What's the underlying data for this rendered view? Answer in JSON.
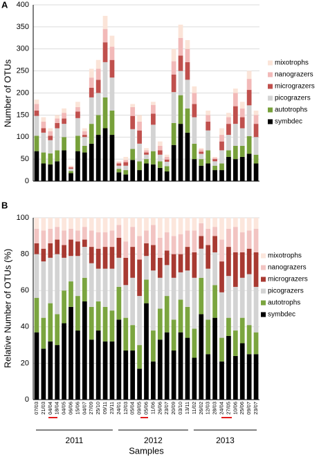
{
  "chart_data": [
    {
      "type": "stacked-bar",
      "label": "A",
      "ylabel": "Number of OTUs",
      "ylim": [
        0,
        400
      ],
      "yticks": [
        0,
        50,
        100,
        150,
        200,
        250,
        300,
        350,
        400
      ],
      "grid": true,
      "categories": [
        null,
        null,
        null,
        null,
        null,
        null,
        null,
        null,
        null,
        null,
        null,
        null,
        null,
        null,
        null,
        null,
        null,
        null,
        null,
        null,
        null,
        null,
        null,
        null,
        null,
        null,
        null,
        null,
        null,
        null,
        null,
        null,
        null
      ],
      "series": [
        {
          "name": "symbdec",
          "color": "#000000",
          "values": [
            68,
            40,
            38,
            45,
            70,
            18,
            68,
            65,
            85,
            105,
            120,
            105,
            20,
            15,
            48,
            25,
            40,
            38,
            30,
            22,
            82,
            130,
            110,
            50,
            35,
            40,
            25,
            25,
            55,
            50,
            55,
            62,
            40
          ]
        },
        {
          "name": "autotrophs",
          "color": "#77a03a",
          "values": [
            35,
            25,
            25,
            25,
            30,
            5,
            35,
            15,
            45,
            45,
            70,
            55,
            8,
            10,
            25,
            20,
            10,
            30,
            15,
            12,
            50,
            65,
            55,
            35,
            15,
            30,
            10,
            15,
            15,
            30,
            25,
            40,
            20
          ]
        },
        {
          "name": "picograzers",
          "color": "#d3d3d3",
          "values": [
            45,
            45,
            30,
            50,
            30,
            5,
            40,
            20,
            60,
            50,
            80,
            75,
            7,
            10,
            45,
            40,
            10,
            60,
            15,
            10,
            70,
            55,
            65,
            60,
            12,
            45,
            10,
            30,
            35,
            50,
            40,
            70,
            40
          ]
        },
        {
          "name": "micrograzers",
          "color": "#c0504d",
          "values": [
            12,
            10,
            10,
            12,
            12,
            3,
            15,
            5,
            22,
            30,
            45,
            40,
            5,
            8,
            30,
            30,
            5,
            25,
            10,
            5,
            40,
            35,
            40,
            30,
            5,
            20,
            5,
            20,
            25,
            40,
            25,
            35,
            30
          ]
        },
        {
          "name": "nanograzers",
          "color": "#f2b9b8",
          "values": [
            15,
            15,
            10,
            10,
            13,
            2,
            10,
            8,
            23,
            25,
            30,
            30,
            3,
            5,
            20,
            20,
            5,
            20,
            10,
            6,
            30,
            40,
            30,
            25,
            5,
            15,
            3,
            15,
            15,
            30,
            20,
            25,
            20
          ]
        },
        {
          "name": "mixotrophs",
          "color": "#fbe4d8",
          "values": [
            10,
            10,
            7,
            8,
            10,
            2,
            12,
            7,
            20,
            20,
            30,
            25,
            2,
            7,
            7,
            15,
            5,
            7,
            10,
            5,
            28,
            30,
            20,
            15,
            3,
            10,
            2,
            15,
            10,
            10,
            15,
            18,
            10
          ]
        }
      ]
    },
    {
      "type": "stacked-bar",
      "label": "B",
      "ylabel": "Relative Number of OTUs (%)",
      "xlabel": "Samples",
      "groups": [
        "2011",
        "2012",
        "2013"
      ],
      "ylim": [
        0,
        100
      ],
      "yticks": [
        0,
        20,
        40,
        60,
        80,
        100
      ],
      "grid": true,
      "categories": [
        "07/03",
        "21/03",
        "04/04",
        "18/04",
        "04/05",
        "06/06",
        "15/06",
        "04/07",
        "27/09",
        "25/10",
        "09/11",
        "23/11",
        "24/01",
        "12/03",
        "05/04",
        "09/05",
        "05/06",
        "11/06",
        "26/06",
        "23/07",
        "20/09",
        "03/10",
        "13/11",
        "11/02",
        "26/02",
        "12/03",
        "28/03",
        "24/04",
        "27/05",
        "10/06",
        "25/06",
        "09/07",
        "23/07"
      ],
      "series": [
        {
          "name": "symbdec",
          "color": "#000000",
          "values": [
            37,
            28,
            32,
            30,
            42,
            51,
            38,
            54,
            33,
            38,
            32,
            32,
            44,
            27,
            27,
            17,
            53,
            21,
            33,
            37,
            27,
            37,
            34,
            23,
            47,
            25,
            45,
            21,
            35,
            24,
            31,
            25,
            25
          ]
        },
        {
          "name": "autotrophs",
          "color": "#7ba53f",
          "values": [
            19,
            17,
            21,
            17,
            18,
            14,
            19,
            13,
            18,
            16,
            19,
            17,
            18,
            18,
            14,
            13,
            13,
            17,
            17,
            20,
            17,
            18,
            17,
            16,
            20,
            19,
            18,
            13,
            10,
            14,
            14,
            16,
            12
          ]
        },
        {
          "name": "picograzers",
          "color": "#d3d3d3",
          "values": [
            24,
            31,
            25,
            33,
            18,
            14,
            22,
            17,
            24,
            18,
            21,
            23,
            16,
            18,
            26,
            27,
            13,
            33,
            17,
            17,
            23,
            15,
            20,
            28,
            16,
            28,
            18,
            25,
            23,
            24,
            22,
            28,
            25
          ]
        },
        {
          "name": "micrograzers",
          "color": "#a83a32",
          "values": [
            6,
            7,
            8,
            8,
            7,
            9,
            8,
            4,
            9,
            11,
            12,
            12,
            11,
            15,
            17,
            20,
            7,
            14,
            11,
            8,
            13,
            10,
            13,
            14,
            7,
            13,
            9,
            17,
            16,
            19,
            14,
            14,
            19
          ]
        },
        {
          "name": "nanograzers",
          "color": "#f2c4c2",
          "values": [
            8,
            10,
            8,
            7,
            8,
            6,
            6,
            7,
            9,
            9,
            8,
            9,
            7,
            9,
            11,
            13,
            7,
            11,
            11,
            10,
            10,
            11,
            9,
            12,
            7,
            9,
            5,
            12,
            10,
            14,
            11,
            10,
            13
          ]
        },
        {
          "name": "mixotrophs",
          "color": "#fce6dc",
          "values": [
            6,
            7,
            6,
            5,
            7,
            6,
            7,
            5,
            7,
            8,
            8,
            7,
            4,
            13,
            5,
            10,
            7,
            4,
            11,
            8,
            10,
            9,
            7,
            7,
            3,
            6,
            5,
            12,
            6,
            5,
            8,
            7,
            6
          ]
        }
      ]
    }
  ]
}
